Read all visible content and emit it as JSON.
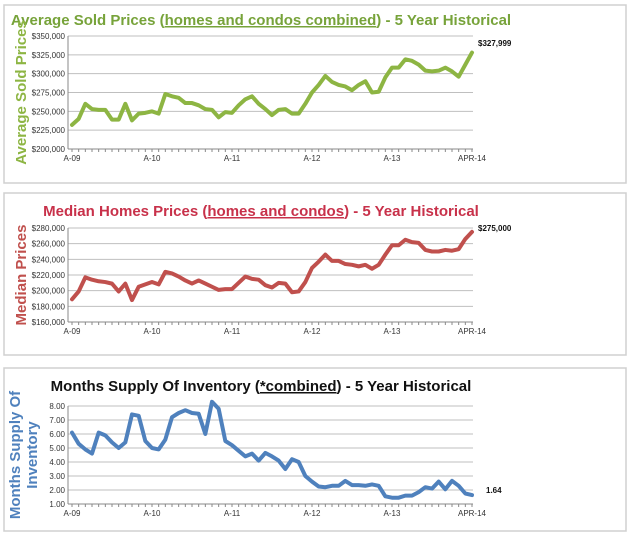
{
  "chart_data": [
    {
      "type": "line",
      "title_parts": [
        "Average Sold Prices (",
        "homes and condos combined",
        ") - 5 Year Historical"
      ],
      "ylabel": "Average Sold Prices",
      "color": "#8db543",
      "title_color": "#77a33a",
      "ylim": [
        200000,
        350000
      ],
      "yticks": [
        "$200,000",
        "$225,000",
        "$250,000",
        "$275,000",
        "$300,000",
        "$325,000",
        "$350,000"
      ],
      "xticks": [
        "A-09",
        "A-10",
        "A-11",
        "A-12",
        "A-13",
        "APR-14"
      ],
      "end_label": "$327,999",
      "grid": true,
      "x_range": [
        "Apr 2009",
        "Apr 2014"
      ],
      "values": [
        232000,
        240000,
        260000,
        253000,
        252000,
        252000,
        239000,
        239000,
        260000,
        238000,
        247000,
        248000,
        250000,
        247000,
        273000,
        270000,
        268000,
        261000,
        261000,
        258000,
        253000,
        252000,
        242000,
        249000,
        248000,
        258000,
        266000,
        270000,
        260000,
        253000,
        245000,
        252000,
        253000,
        247000,
        247000,
        260000,
        275000,
        285000,
        297000,
        289000,
        285000,
        283000,
        278000,
        285000,
        290000,
        275000,
        276000,
        295000,
        308000,
        308000,
        319000,
        317000,
        312000,
        304000,
        303000,
        304000,
        308000,
        303000,
        296000,
        312000,
        327999
      ]
    },
    {
      "type": "line",
      "title_parts": [
        "Median Homes Prices (",
        "homes and condos",
        ") - 5 Year Historical"
      ],
      "ylabel": "Median Prices",
      "color": "#c0504d",
      "title_color": "#c8314a",
      "ylim": [
        160000,
        280000
      ],
      "yticks": [
        "$160,000",
        "$180,000",
        "$200,000",
        "$220,000",
        "$240,000",
        "$260,000",
        "$280,000"
      ],
      "xticks": [
        "A-09",
        "A-10",
        "A-11",
        "A-12",
        "A-13",
        "APR-14"
      ],
      "end_label": "$275,000",
      "grid": true,
      "x_range": [
        "Apr 2009",
        "Apr 2014"
      ],
      "values": [
        189000,
        199000,
        217000,
        214000,
        212000,
        211000,
        209000,
        199000,
        209000,
        188000,
        205000,
        208000,
        211000,
        208000,
        224000,
        222000,
        218000,
        213000,
        209000,
        213000,
        209000,
        205000,
        201000,
        202000,
        202000,
        210000,
        218000,
        215000,
        214000,
        207000,
        204000,
        210000,
        209000,
        198000,
        199000,
        211000,
        229000,
        237000,
        246000,
        238000,
        238000,
        234000,
        233000,
        231000,
        233000,
        228000,
        233000,
        246000,
        258000,
        258000,
        265000,
        262000,
        261000,
        252000,
        250000,
        250000,
        252000,
        251000,
        253000,
        266000,
        275000
      ]
    },
    {
      "type": "line",
      "title_parts": [
        "Months Supply Of Inventory (",
        "*combined",
        ") - 5 Year Historical"
      ],
      "ylabel": "Months Supply Of Inventory",
      "ylabel_lines": [
        "Months Supply Of",
        "Inventory"
      ],
      "color": "#4f81bd",
      "title_color": "#111111",
      "ylim": [
        1,
        8
      ],
      "yticks": [
        "1.00",
        "2.00",
        "3.00",
        "4.00",
        "5.00",
        "6.00",
        "7.00",
        "8.00"
      ],
      "xticks": [
        "A-09",
        "A-10",
        "A-11",
        "A-12",
        "A-13",
        "APR-14"
      ],
      "end_label": "1.64",
      "grid": true,
      "x_range": [
        "Apr 2009",
        "Apr 2014"
      ],
      "values": [
        6.1,
        5.3,
        4.9,
        4.6,
        6.1,
        5.9,
        5.4,
        5.0,
        5.4,
        7.4,
        7.3,
        5.5,
        5.0,
        4.9,
        5.6,
        7.2,
        7.5,
        7.7,
        7.5,
        7.45,
        6.0,
        8.3,
        7.8,
        5.5,
        5.2,
        4.8,
        4.4,
        4.6,
        4.1,
        4.65,
        4.4,
        4.1,
        3.5,
        4.2,
        4.0,
        3.0,
        2.6,
        2.25,
        2.2,
        2.3,
        2.3,
        2.65,
        2.35,
        2.35,
        2.3,
        2.4,
        2.3,
        1.55,
        1.45,
        1.45,
        1.6,
        1.6,
        1.85,
        2.2,
        2.1,
        2.6,
        2.05,
        2.65,
        2.3,
        1.75,
        1.64
      ]
    }
  ]
}
